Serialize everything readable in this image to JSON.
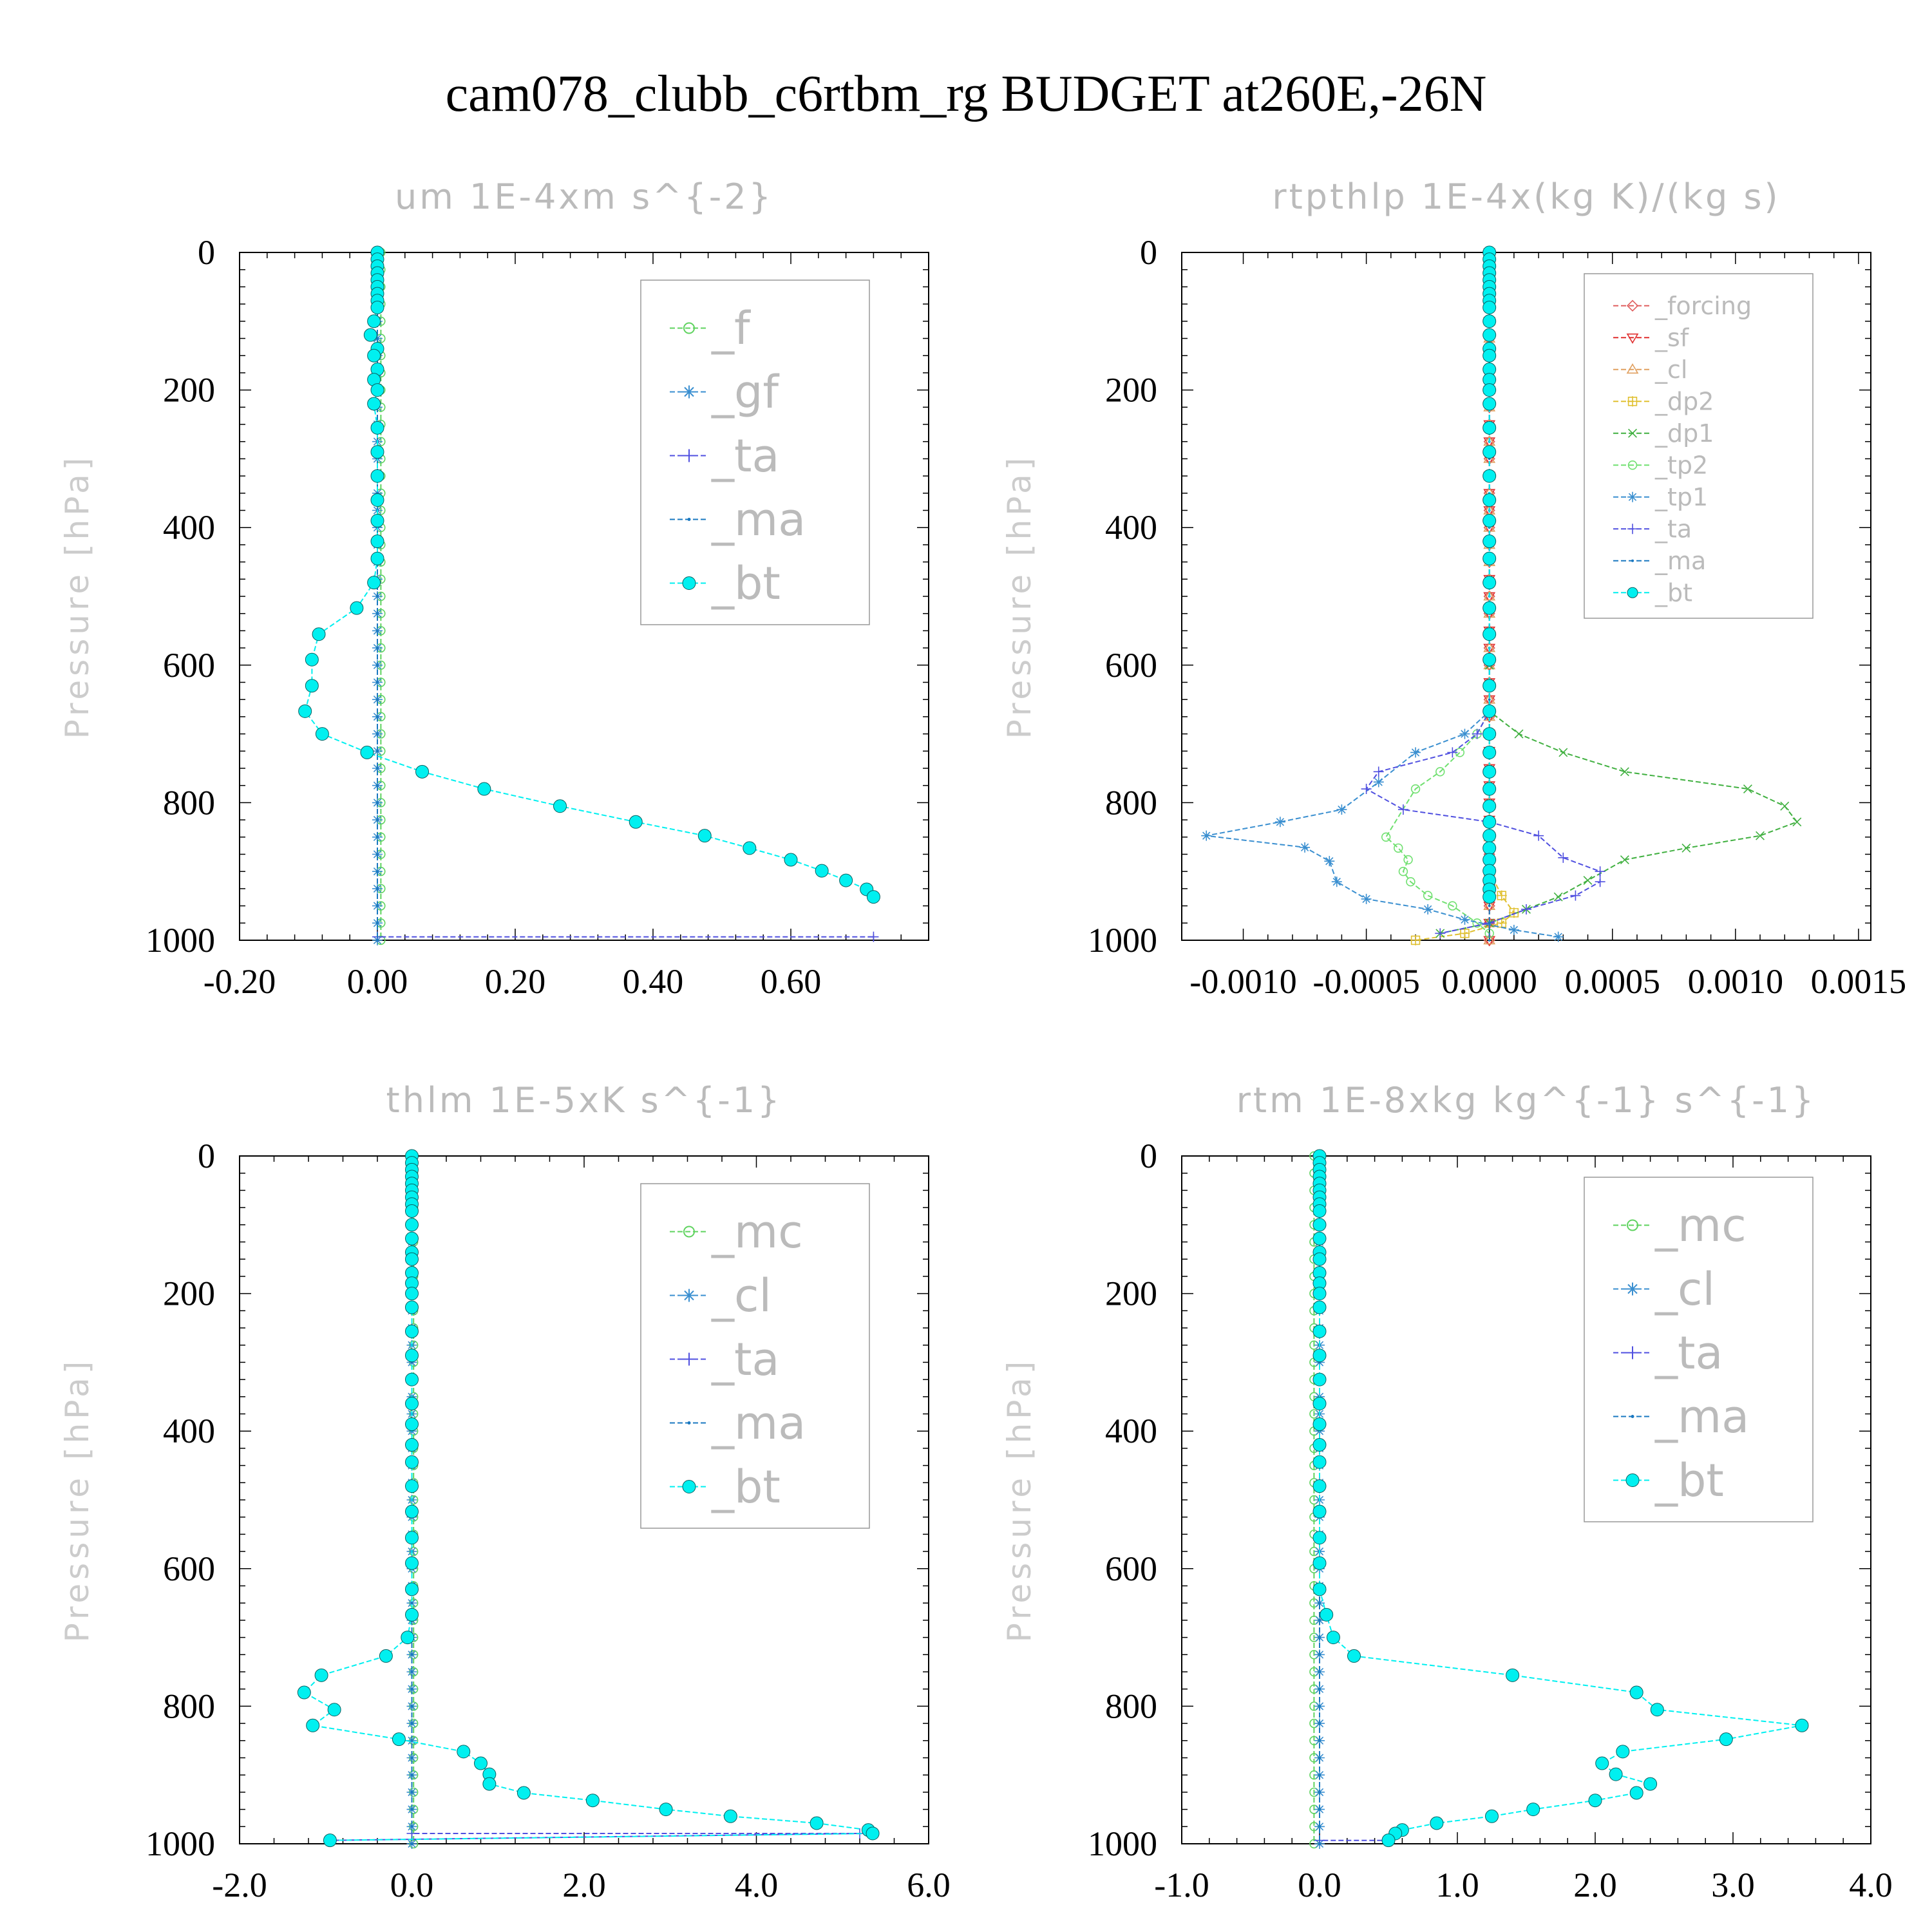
{
  "figure_title": "cam078_clubb_c6rtbm_rg  BUDGET at260E,-26N",
  "colors": {
    "f": "#5fd35f",
    "gf": "#3a8fd0",
    "ta": "#5050e0",
    "ma": "#1a78c0",
    "bt": "#00f0f0",
    "forcing": "#e06060",
    "sf": "#e03030",
    "cl": "#e0a060",
    "dp2": "#e0c030",
    "dp1": "#40b040",
    "tp2": "#70e070",
    "tp1": "#3a8fd0",
    "mc": "#5fd35f"
  },
  "chart_data": [
    {
      "type": "line",
      "title": "um  1E-4xm s^{-2}",
      "ylabel": "Pressure [hPa]",
      "xlim": [
        -0.2,
        0.8
      ],
      "ylim": [
        1000,
        0
      ],
      "xticks": [
        -0.2,
        0.0,
        0.2,
        0.4,
        0.6
      ],
      "xtick_labels": [
        "-0.20",
        "0.00",
        "0.20",
        "0.40",
        "0.60"
      ],
      "yticks": [
        0,
        200,
        400,
        600,
        800,
        1000
      ],
      "ytick_labels": [
        "0",
        "200",
        "400",
        "600",
        "800",
        "1000"
      ],
      "legend_position": "top-right",
      "legend": [
        "_f",
        "_gf",
        "_ta",
        "_ma",
        "_bt"
      ],
      "series": [
        {
          "name": "_f",
          "color_key": "f",
          "x": [
            0.005,
            0.005
          ],
          "y": [
            0,
            1000
          ]
        },
        {
          "name": "_gf",
          "color_key": "gf",
          "x": [
            0.0,
            0.0
          ],
          "y": [
            0,
            1000
          ]
        },
        {
          "name": "_ta",
          "color_key": "ta",
          "x": [
            0.0,
            0.0,
            0.72
          ],
          "y": [
            0,
            995,
            995
          ]
        },
        {
          "name": "_ma",
          "color_key": "ma",
          "x": [
            0.0,
            0.0
          ],
          "y": [
            0,
            1000
          ]
        },
        {
          "name": "_bt",
          "color_key": "bt",
          "x": [
            0.0,
            0.0,
            0.0,
            0.0,
            0.0,
            0.0,
            0.0,
            0.0,
            0.0,
            -0.005,
            -0.01,
            0.0,
            -0.005,
            0.0,
            -0.005,
            0.0,
            -0.005,
            0.0,
            0.0,
            0.0,
            0.0,
            0.0,
            0.0,
            0.0,
            -0.005,
            -0.03,
            -0.085,
            -0.095,
            -0.095,
            -0.105,
            -0.08,
            -0.015,
            0.065,
            0.155,
            0.265,
            0.375,
            0.475,
            0.54,
            0.6,
            0.645,
            0.68,
            0.71,
            0.72
          ],
          "y": [
            0,
            10,
            20,
            30,
            40,
            50,
            60,
            70,
            80,
            100,
            120,
            140,
            150,
            170,
            185,
            200,
            220,
            255,
            290,
            325,
            360,
            390,
            420,
            445,
            480,
            517,
            555,
            592,
            630,
            667,
            700,
            727,
            755,
            780,
            805,
            828,
            848,
            866,
            883,
            899,
            913,
            926,
            937
          ]
        }
      ]
    },
    {
      "type": "line",
      "title": "rtpthlp  1E-4x(kg K)/(kg s)",
      "ylabel": "Pressure [hPa]",
      "xlim": [
        -0.00125,
        0.00155
      ],
      "ylim": [
        1000,
        0
      ],
      "xticks": [
        -0.001,
        -0.0005,
        0.0,
        0.0005,
        0.001,
        0.0015
      ],
      "xtick_labels": [
        "-0.0010",
        "-0.0005",
        "0.0000",
        "0.0005",
        "0.0010",
        "0.0015"
      ],
      "yticks": [
        0,
        200,
        400,
        600,
        800,
        1000
      ],
      "ytick_labels": [
        "0",
        "200",
        "400",
        "600",
        "800",
        "1000"
      ],
      "legend_position": "top-right",
      "legend": [
        "_forcing",
        "_sf",
        "_cl",
        "_dp2",
        "_dp1",
        "_tp2",
        "_tp1",
        "_ta",
        "_ma",
        "_bt"
      ],
      "series": [
        {
          "name": "_forcing",
          "color_key": "forcing",
          "x": [
            0.0,
            0.0
          ],
          "y": [
            0,
            1000
          ]
        },
        {
          "name": "_sf",
          "color_key": "sf",
          "x": [
            0.0,
            0.0
          ],
          "y": [
            0,
            1000
          ]
        },
        {
          "name": "_cl",
          "color_key": "cl",
          "x": [
            0.0,
            0.0
          ],
          "y": [
            0,
            1000
          ]
        },
        {
          "name": "_dp2",
          "color_key": "dp2",
          "x": [
            0.0,
            0.0,
            5e-05,
            0.0001,
            5e-05,
            -0.0001,
            -0.0003
          ],
          "y": [
            0,
            900,
            935,
            960,
            975,
            990,
            1000
          ]
        },
        {
          "name": "_dp1",
          "color_key": "dp1",
          "x": [
            0.0,
            0.0,
            0.0,
            0.00012,
            0.0003,
            0.00055,
            0.00105,
            0.0012,
            0.00125,
            0.0011,
            0.0008,
            0.00055,
            0.0004,
            0.00028,
            0.00015,
            0.0,
            -0.0002
          ],
          "y": [
            0,
            600,
            667,
            700,
            727,
            755,
            780,
            805,
            828,
            848,
            866,
            883,
            913,
            937,
            955,
            975,
            990
          ]
        },
        {
          "name": "_tp2",
          "color_key": "tp2",
          "x": [
            0.0,
            0.0,
            -5e-05,
            -0.00012,
            -0.0002,
            -0.0003,
            -0.00042,
            -0.00037,
            -0.00033,
            -0.00035,
            -0.00032,
            -0.00025,
            -0.00015,
            -5e-05,
            0.0
          ],
          "y": [
            0,
            667,
            700,
            727,
            755,
            780,
            850,
            866,
            883,
            900,
            915,
            935,
            950,
            975,
            990
          ]
        },
        {
          "name": "_tp1",
          "color_key": "tp1",
          "x": [
            0.0,
            0.0,
            -0.0001,
            -0.0003,
            -0.00045,
            -0.0006,
            -0.00085,
            -0.00115,
            -0.00075,
            -0.00065,
            -0.00062,
            -0.0005,
            -0.00025,
            -0.0001,
            0.0001,
            0.00028
          ],
          "y": [
            0,
            667,
            700,
            727,
            770,
            810,
            828,
            848,
            865,
            885,
            915,
            940,
            955,
            970,
            985,
            995
          ]
        },
        {
          "name": "_ta",
          "color_key": "ta",
          "x": [
            0.0,
            0.0,
            -5e-05,
            -0.00015,
            -0.00045,
            -0.0005,
            -0.00035,
            0.0,
            0.0002,
            0.0003,
            0.00045,
            0.00045,
            0.00035,
            0.00015,
            0.0,
            -0.0002
          ],
          "y": [
            0,
            667,
            700,
            727,
            755,
            780,
            810,
            828,
            848,
            880,
            900,
            915,
            935,
            955,
            975,
            990
          ]
        },
        {
          "name": "_ma",
          "color_key": "ma",
          "x": [
            0.0,
            0.0
          ],
          "y": [
            0,
            1000
          ]
        },
        {
          "name": "_bt",
          "color_key": "bt",
          "x": [
            0.0,
            0.0,
            0.0,
            0.0,
            0.0,
            0.0,
            0.0,
            0.0,
            0.0,
            0.0,
            0.0,
            0.0,
            0.0,
            0.0,
            0.0,
            0.0,
            0.0,
            0.0,
            0.0,
            0.0,
            0.0,
            0.0,
            0.0,
            0.0,
            0.0,
            0.0,
            0.0,
            0.0,
            0.0,
            0.0,
            0.0,
            0.0,
            0.0,
            0.0,
            0.0,
            0.0,
            0.0,
            0.0,
            0.0,
            0.0,
            0.0,
            0.0,
            0.0
          ],
          "y": [
            0,
            10,
            20,
            30,
            40,
            50,
            60,
            70,
            80,
            100,
            120,
            140,
            150,
            170,
            185,
            200,
            220,
            255,
            290,
            325,
            360,
            390,
            420,
            445,
            480,
            517,
            555,
            592,
            630,
            667,
            700,
            727,
            755,
            780,
            805,
            828,
            848,
            866,
            883,
            899,
            913,
            926,
            937
          ]
        }
      ]
    },
    {
      "type": "line",
      "title": "thlm  1E-5xK s^{-1}",
      "ylabel": "Pressure [hPa]",
      "xlim": [
        -2.0,
        6.0
      ],
      "ylim": [
        1000,
        0
      ],
      "xticks": [
        -2.0,
        0.0,
        2.0,
        4.0,
        6.0
      ],
      "xtick_labels": [
        "-2.0",
        "0.0",
        "2.0",
        "4.0",
        "6.0"
      ],
      "yticks": [
        0,
        200,
        400,
        600,
        800,
        1000
      ],
      "ytick_labels": [
        "0",
        "200",
        "400",
        "600",
        "800",
        "1000"
      ],
      "legend_position": "top-right",
      "legend": [
        "_mc",
        "_cl",
        "_ta",
        "_ma",
        "_bt"
      ],
      "series": [
        {
          "name": "_mc",
          "color_key": "mc",
          "x": [
            0.02,
            0.02
          ],
          "y": [
            0,
            1000
          ]
        },
        {
          "name": "_cl",
          "color_key": "gf",
          "x": [
            0.0,
            0.0
          ],
          "y": [
            0,
            1000
          ]
        },
        {
          "name": "_ta",
          "color_key": "ta",
          "x": [
            0.0,
            0.0,
            5.2,
            -0.95
          ],
          "y": [
            0,
            985,
            985,
            995
          ]
        },
        {
          "name": "_ma",
          "color_key": "ma",
          "x": [
            0.0,
            0.0
          ],
          "y": [
            0,
            1000
          ]
        },
        {
          "name": "_bt",
          "color_key": "bt",
          "x": [
            0.0,
            0.0,
            0.0,
            0.0,
            0.0,
            0.0,
            0.0,
            0.0,
            0.0,
            0.0,
            0.0,
            0.0,
            0.0,
            0.0,
            0.0,
            0.0,
            0.0,
            0.0,
            0.0,
            0.0,
            0.0,
            0.0,
            0.0,
            0.0,
            0.0,
            0.0,
            0.0,
            0.0,
            0.0,
            0.0,
            -0.05,
            -0.3,
            -1.05,
            -1.25,
            -0.9,
            -1.15,
            -0.15,
            0.6,
            0.8,
            0.9,
            0.9,
            1.3,
            2.1,
            2.95,
            3.7,
            4.7,
            5.3,
            5.35,
            -0.95
          ],
          "y": [
            0,
            10,
            20,
            30,
            40,
            50,
            60,
            70,
            80,
            100,
            120,
            140,
            150,
            170,
            185,
            200,
            220,
            255,
            290,
            325,
            360,
            390,
            420,
            445,
            480,
            517,
            555,
            592,
            630,
            667,
            700,
            727,
            755,
            780,
            805,
            828,
            848,
            866,
            883,
            899,
            913,
            926,
            937,
            950,
            960,
            970,
            980,
            985,
            995
          ]
        }
      ]
    },
    {
      "type": "line",
      "title": "rtm  1E-8xkg kg^{-1} s^{-1}",
      "ylabel": "Pressure [hPa]",
      "xlim": [
        -1.0,
        4.0
      ],
      "ylim": [
        1000,
        0
      ],
      "xticks": [
        -1.0,
        0.0,
        1.0,
        2.0,
        3.0,
        4.0
      ],
      "xtick_labels": [
        "-1.0",
        "0.0",
        "1.0",
        "2.0",
        "3.0",
        "4.0"
      ],
      "yticks": [
        0,
        200,
        400,
        600,
        800,
        1000
      ],
      "ytick_labels": [
        "0",
        "200",
        "400",
        "600",
        "800",
        "1000"
      ],
      "legend_position": "top-right",
      "legend": [
        "_mc",
        "_cl",
        "_ta",
        "_ma",
        "_bt"
      ],
      "series": [
        {
          "name": "_mc",
          "color_key": "mc",
          "x": [
            -0.04,
            -0.04
          ],
          "y": [
            0,
            1000
          ]
        },
        {
          "name": "_cl",
          "color_key": "gf",
          "x": [
            0.0,
            0.0
          ],
          "y": [
            0,
            1000
          ]
        },
        {
          "name": "_ta",
          "color_key": "ta",
          "x": [
            0.0,
            0.0,
            0.5
          ],
          "y": [
            0,
            995,
            995
          ]
        },
        {
          "name": "_ma",
          "color_key": "ma",
          "x": [
            0.0,
            0.0
          ],
          "y": [
            0,
            1000
          ]
        },
        {
          "name": "_bt",
          "color_key": "bt",
          "x": [
            0.0,
            0.0,
            0.0,
            0.0,
            0.0,
            0.0,
            0.0,
            0.0,
            0.0,
            0.0,
            0.0,
            0.0,
            0.0,
            0.0,
            0.0,
            0.0,
            0.0,
            0.0,
            0.0,
            0.0,
            0.0,
            0.0,
            0.0,
            0.0,
            0.0,
            0.0,
            0.0,
            0.0,
            0.0,
            0.05,
            0.1,
            0.25,
            1.4,
            2.3,
            2.45,
            3.5,
            2.95,
            2.2,
            2.05,
            2.15,
            2.4,
            2.3,
            2.0,
            1.55,
            1.25,
            0.85,
            0.6,
            0.55,
            0.5
          ],
          "y": [
            0,
            10,
            20,
            30,
            40,
            50,
            60,
            70,
            80,
            100,
            120,
            140,
            150,
            170,
            185,
            200,
            220,
            255,
            290,
            325,
            360,
            390,
            420,
            445,
            480,
            517,
            555,
            592,
            630,
            667,
            700,
            727,
            755,
            780,
            805,
            828,
            848,
            866,
            883,
            899,
            913,
            926,
            937,
            950,
            960,
            970,
            980,
            985,
            995
          ]
        }
      ]
    }
  ]
}
